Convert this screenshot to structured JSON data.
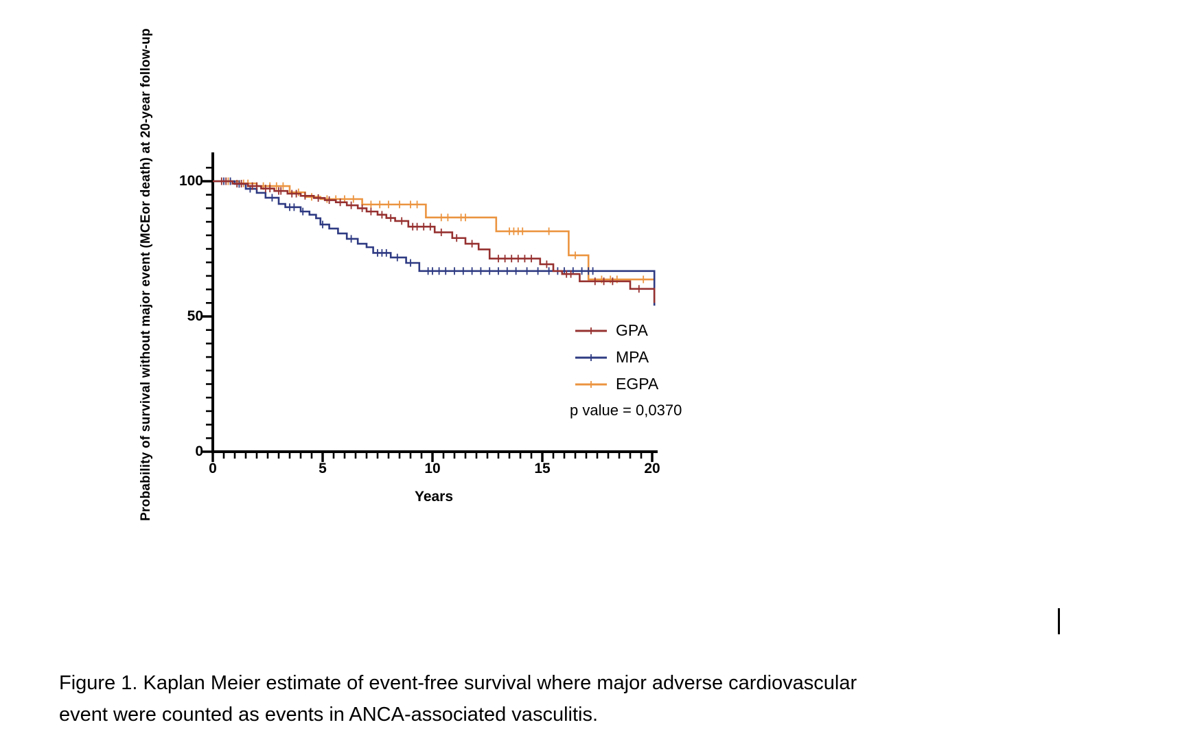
{
  "chart_data": {
    "type": "line",
    "subtype": "kaplan-meier-step-survival",
    "title": "",
    "xlabel": "Years",
    "ylabel": "Probability of survival without major event (MCEor death) at 20-year follow-up",
    "xlim": [
      0,
      20
    ],
    "ylim": [
      0,
      100
    ],
    "x_ticks": [
      0,
      5,
      10,
      15,
      20
    ],
    "y_ticks": [
      0,
      50,
      100
    ],
    "x_minor_tick_step": 0.5,
    "y_minor_tick_step": 5,
    "grid": "off",
    "legend_position": "inside-right",
    "p_value_label": "p value = 0,0370",
    "series": [
      {
        "name": "EGPA",
        "color": "#eb9440",
        "steps": [
          [
            0,
            100
          ],
          [
            1.2,
            99.2
          ],
          [
            2.0,
            98.2
          ],
          [
            3.5,
            95.9
          ],
          [
            4.2,
            94.2
          ],
          [
            4.9,
            93.4
          ],
          [
            6.8,
            91.4
          ],
          [
            9.7,
            86.6
          ],
          [
            12.9,
            81.5
          ],
          [
            16.2,
            72.6
          ],
          [
            17.1,
            63.7
          ],
          [
            20.1,
            63.7
          ]
        ],
        "censors": [
          [
            0.7,
            100
          ],
          [
            1.4,
            99.2
          ],
          [
            1.6,
            99.2
          ],
          [
            2.3,
            98.2
          ],
          [
            2.6,
            98.2
          ],
          [
            2.9,
            98.2
          ],
          [
            3.2,
            98.2
          ],
          [
            3.9,
            95.9
          ],
          [
            4.5,
            94.2
          ],
          [
            5.2,
            93.4
          ],
          [
            5.6,
            93.4
          ],
          [
            6.0,
            93.4
          ],
          [
            6.4,
            93.4
          ],
          [
            7.2,
            91.4
          ],
          [
            7.6,
            91.4
          ],
          [
            8.0,
            91.4
          ],
          [
            8.5,
            91.4
          ],
          [
            9.0,
            91.4
          ],
          [
            9.3,
            91.4
          ],
          [
            10.4,
            86.6
          ],
          [
            10.7,
            86.6
          ],
          [
            11.3,
            86.6
          ],
          [
            11.5,
            86.6
          ],
          [
            13.5,
            81.5
          ],
          [
            13.7,
            81.5
          ],
          [
            13.9,
            81.5
          ],
          [
            14.1,
            81.5
          ],
          [
            15.3,
            81.5
          ],
          [
            16.5,
            72.6
          ],
          [
            17.7,
            63.7
          ],
          [
            18.1,
            63.7
          ],
          [
            18.4,
            63.7
          ],
          [
            19.6,
            63.7
          ]
        ]
      },
      {
        "name": "MPA",
        "color": "#2e3a82",
        "steps": [
          [
            0,
            100
          ],
          [
            1.0,
            99.0
          ],
          [
            1.5,
            97.2
          ],
          [
            2.0,
            95.7
          ],
          [
            2.4,
            93.9
          ],
          [
            3.0,
            91.6
          ],
          [
            3.3,
            90.4
          ],
          [
            4.0,
            88.8
          ],
          [
            4.4,
            87.6
          ],
          [
            4.7,
            86.3
          ],
          [
            4.9,
            84.0
          ],
          [
            5.3,
            82.5
          ],
          [
            5.7,
            80.7
          ],
          [
            6.1,
            78.7
          ],
          [
            6.6,
            76.9
          ],
          [
            7.0,
            75.6
          ],
          [
            7.3,
            73.5
          ],
          [
            8.1,
            71.8
          ],
          [
            8.8,
            69.8
          ],
          [
            9.4,
            66.8
          ],
          [
            20.1,
            54.0
          ]
        ],
        "censors": [
          [
            0.5,
            100
          ],
          [
            0.8,
            100
          ],
          [
            1.2,
            99.0
          ],
          [
            1.7,
            97.2
          ],
          [
            2.7,
            93.9
          ],
          [
            3.5,
            90.4
          ],
          [
            3.7,
            90.4
          ],
          [
            4.1,
            88.8
          ],
          [
            5.0,
            84.0
          ],
          [
            6.3,
            78.7
          ],
          [
            7.5,
            73.5
          ],
          [
            7.7,
            73.5
          ],
          [
            7.9,
            73.5
          ],
          [
            8.4,
            71.8
          ],
          [
            9.0,
            69.8
          ],
          [
            9.8,
            66.8
          ],
          [
            10.0,
            66.8
          ],
          [
            10.3,
            66.8
          ],
          [
            10.6,
            66.8
          ],
          [
            11.0,
            66.8
          ],
          [
            11.4,
            66.8
          ],
          [
            11.8,
            66.8
          ],
          [
            12.2,
            66.8
          ],
          [
            12.6,
            66.8
          ],
          [
            13.0,
            66.8
          ],
          [
            13.4,
            66.8
          ],
          [
            13.8,
            66.8
          ],
          [
            14.3,
            66.8
          ],
          [
            14.8,
            66.8
          ],
          [
            15.3,
            66.8
          ],
          [
            15.7,
            66.8
          ],
          [
            16.0,
            66.8
          ],
          [
            16.4,
            66.8
          ],
          [
            16.8,
            66.8
          ],
          [
            17.1,
            66.8
          ],
          [
            17.3,
            66.8
          ]
        ]
      },
      {
        "name": "GPA",
        "color": "#963130",
        "steps": [
          [
            0,
            100
          ],
          [
            0.9,
            99.1
          ],
          [
            1.6,
            98.2
          ],
          [
            2.2,
            97.3
          ],
          [
            2.8,
            96.4
          ],
          [
            3.4,
            95.4
          ],
          [
            4.0,
            94.6
          ],
          [
            4.6,
            93.8
          ],
          [
            5.1,
            93.0
          ],
          [
            5.6,
            92.2
          ],
          [
            6.1,
            91.1
          ],
          [
            6.6,
            90.0
          ],
          [
            7.0,
            88.8
          ],
          [
            7.5,
            87.6
          ],
          [
            7.9,
            86.4
          ],
          [
            8.3,
            85.3
          ],
          [
            8.9,
            83.2
          ],
          [
            10.1,
            81.1
          ],
          [
            10.9,
            79.0
          ],
          [
            11.5,
            76.9
          ],
          [
            12.1,
            74.8
          ],
          [
            12.6,
            71.4
          ],
          [
            14.9,
            69.3
          ],
          [
            15.5,
            66.8
          ],
          [
            15.9,
            65.7
          ],
          [
            16.7,
            63.0
          ],
          [
            19.0,
            60.2
          ],
          [
            20.1,
            55.0
          ]
        ],
        "censors": [
          [
            0.4,
            100
          ],
          [
            0.6,
            100
          ],
          [
            1.1,
            99.1
          ],
          [
            1.3,
            99.1
          ],
          [
            1.8,
            98.2
          ],
          [
            2.0,
            98.2
          ],
          [
            2.4,
            97.3
          ],
          [
            2.6,
            97.3
          ],
          [
            3.0,
            96.4
          ],
          [
            3.1,
            96.4
          ],
          [
            3.6,
            95.4
          ],
          [
            3.8,
            95.4
          ],
          [
            4.2,
            94.6
          ],
          [
            4.8,
            93.8
          ],
          [
            5.3,
            93.0
          ],
          [
            5.8,
            92.2
          ],
          [
            6.3,
            91.1
          ],
          [
            6.8,
            90.0
          ],
          [
            7.2,
            88.8
          ],
          [
            7.7,
            87.6
          ],
          [
            8.1,
            86.4
          ],
          [
            8.6,
            85.3
          ],
          [
            9.1,
            83.2
          ],
          [
            9.3,
            83.2
          ],
          [
            9.6,
            83.2
          ],
          [
            9.9,
            83.2
          ],
          [
            10.4,
            81.1
          ],
          [
            11.1,
            79.0
          ],
          [
            11.8,
            76.9
          ],
          [
            13.0,
            71.4
          ],
          [
            13.3,
            71.4
          ],
          [
            13.6,
            71.4
          ],
          [
            13.9,
            71.4
          ],
          [
            14.2,
            71.4
          ],
          [
            14.5,
            71.4
          ],
          [
            15.2,
            69.3
          ],
          [
            16.1,
            65.7
          ],
          [
            16.3,
            65.7
          ],
          [
            17.4,
            63.0
          ],
          [
            17.8,
            63.0
          ],
          [
            18.2,
            63.0
          ],
          [
            19.4,
            60.2
          ]
        ]
      }
    ],
    "legend_order": [
      "GPA",
      "MPA",
      "EGPA"
    ]
  },
  "caption": {
    "lines": [
      "Figure 1. Kaplan Meier estimate of event-free survival where major adverse cardiovascular",
      "event were counted as events in ANCA-associated vasculitis."
    ]
  }
}
